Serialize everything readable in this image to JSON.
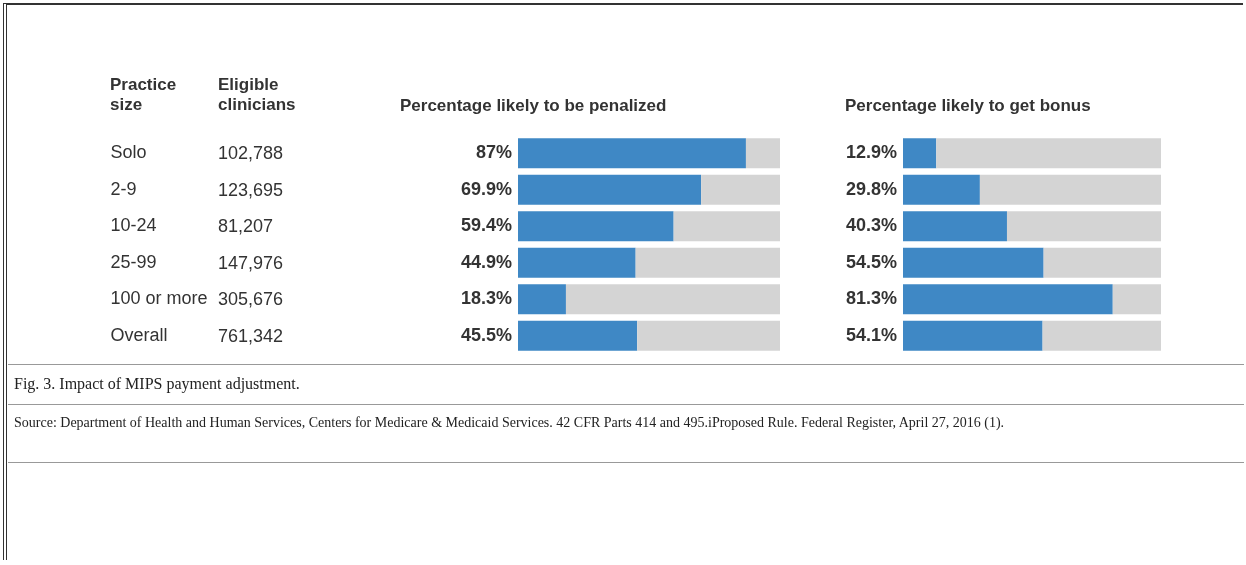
{
  "chart_data": [
    {
      "type": "other",
      "title": "Eligible clinicians",
      "annotations": [
        "102,788",
        "123,695",
        "81,207",
        "147,976",
        "305,676",
        "761,342"
      ]
    },
    {
      "type": "bar",
      "orientation": "horizontal",
      "stacked": true,
      "title": "Percentage likely to be penalized",
      "ylabel": "Practice size",
      "categories": [
        "Solo",
        "2-9",
        "10-24",
        "25-99",
        "100 or more",
        "Overall"
      ],
      "tick_labels": "y",
      "legend": false,
      "series": [
        {
          "color": "#3f88c5",
          "values": [
            87,
            69.9,
            59.4,
            44.9,
            18.3,
            45.5
          ],
          "value_labels": [
            "87%",
            "69.9%",
            "59.4%",
            "44.9%",
            "18.3%",
            "45.5%"
          ]
        },
        {
          "color": "#d4d4d4",
          "values": [
            13,
            30.1,
            40.6,
            55.1,
            81.7,
            54.5
          ]
        }
      ],
      "annotations": [
        "Fig. 3. Impact of MIPS payment adjustment.",
        "Source: Department of Health and Human Services, Centers for Medicare & Medicaid Services. 42 CFR Parts 414 and 495.iProposed Rule. Federal Register, April 27, 2016 (1)."
      ]
    },
    {
      "type": "bar",
      "orientation": "horizontal",
      "stacked": true,
      "title": "Percentage likely to get bonus",
      "categories": [
        null,
        null,
        null,
        null,
        null,
        null
      ],
      "tick_labels": false,
      "legend": false,
      "series": [
        {
          "color": "#3f88c5",
          "values": [
            12.9,
            29.8,
            40.3,
            54.5,
            81.3,
            54.1
          ],
          "value_labels": [
            "12.9%",
            "29.8%",
            "40.3%",
            "54.5%",
            "81.3%",
            "54.1%"
          ]
        },
        {
          "color": "#d4d4d4",
          "values": [
            87.1,
            70.2,
            59.7,
            45.5,
            18.7,
            45.9
          ]
        }
      ]
    }
  ]
}
